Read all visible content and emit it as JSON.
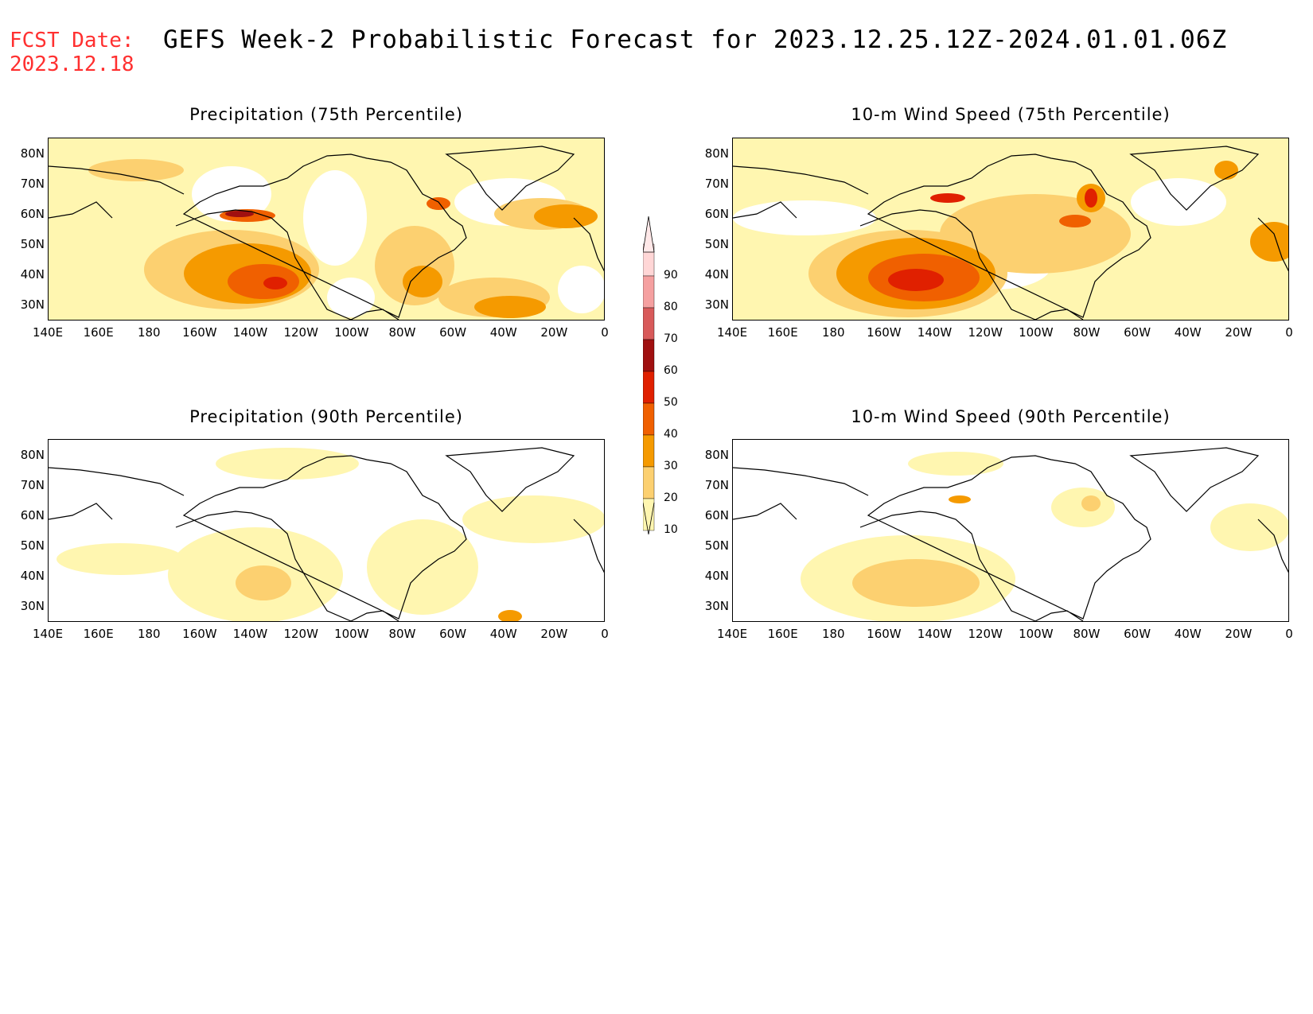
{
  "header": {
    "fcst_label": "FCST Date:",
    "fcst_date": "2023.12.18",
    "title": "GEFS Week-2 Probabilistic Forecast for 2023.12.25.12Z-2024.01.01.06Z"
  },
  "panels": [
    {
      "title": "Precipitation (75th Percentile)"
    },
    {
      "title": "10-m Wind Speed (75th Percentile)"
    },
    {
      "title": "Precipitation (90th Percentile)"
    },
    {
      "title": "10-m Wind Speed (90th Percentile)"
    }
  ],
  "axes": {
    "lat_labels": [
      "80N",
      "70N",
      "60N",
      "50N",
      "40N",
      "30N"
    ],
    "lon_labels": [
      "140E",
      "160E",
      "180",
      "160W",
      "140W",
      "120W",
      "100W",
      "80W",
      "60W",
      "40W",
      "20W",
      "0"
    ]
  },
  "colorbar": {
    "levels": [
      "90",
      "80",
      "70",
      "60",
      "50",
      "40",
      "30",
      "20",
      "10"
    ],
    "colors": [
      "#ffd6d6",
      "#f5a0a0",
      "#d85a5a",
      "#a01010",
      "#e02000",
      "#f06000",
      "#f59a00",
      "#fcd070",
      "#fff6b0"
    ]
  },
  "colors": {
    "fcst_text": "#ff3030",
    "level_10": "#fff6b0",
    "level_20": "#fcd070",
    "level_30": "#f59a00",
    "level_40": "#f06000",
    "level_50": "#e02000",
    "level_60": "#a01010"
  }
}
